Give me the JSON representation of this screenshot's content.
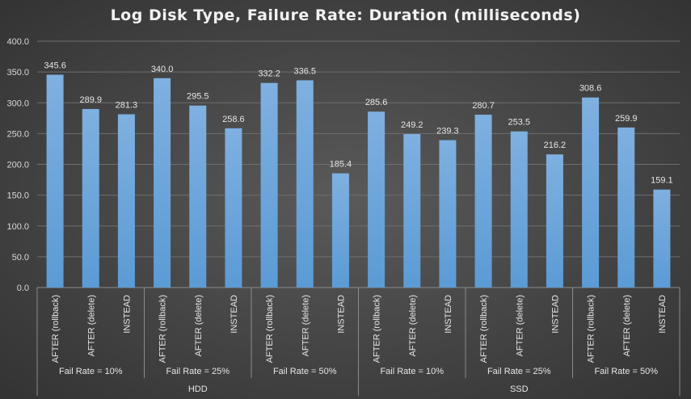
{
  "chart_data": {
    "type": "bar",
    "title": "Log Disk Type, Failure Rate: Duration (milliseconds)",
    "xlabel": "",
    "ylabel": "",
    "ylim": [
      0,
      400
    ],
    "y_ticks": [
      "0.0",
      "50.0",
      "100.0",
      "150.0",
      "200.0",
      "250.0",
      "300.0",
      "350.0",
      "400.0"
    ],
    "grid": true,
    "legend": "none",
    "bar_color": "#5b9bd5",
    "categories": [
      "AFTER (rollback)",
      "AFTER (delete)",
      "INSTEAD",
      "AFTER (rollback)",
      "AFTER (delete)",
      "INSTEAD",
      "AFTER (rollback)",
      "AFTER (delete)",
      "INSTEAD",
      "AFTER (rollback)",
      "AFTER (delete)",
      "INSTEAD",
      "AFTER (rollback)",
      "AFTER (delete)",
      "INSTEAD",
      "AFTER (rollback)",
      "AFTER (delete)",
      "INSTEAD"
    ],
    "values": [
      345.6,
      289.9,
      281.3,
      340.0,
      295.5,
      258.6,
      332.2,
      336.5,
      185.4,
      285.6,
      249.2,
      239.3,
      280.7,
      253.5,
      216.2,
      308.6,
      259.9,
      159.1
    ],
    "value_labels": [
      "345.6",
      "289.9",
      "281.3",
      "340.0",
      "295.5",
      "258.6",
      "332.2",
      "336.5",
      "185.4",
      "285.6",
      "249.2",
      "239.3",
      "280.7",
      "253.5",
      "216.2",
      "308.6",
      "259.9",
      "159.1"
    ],
    "fail_rate_groups": [
      "Fail Rate = 10%",
      "Fail Rate = 25%",
      "Fail Rate = 50%",
      "Fail Rate = 10%",
      "Fail Rate = 25%",
      "Fail Rate = 50%"
    ],
    "disk_groups": [
      "HDD",
      "SSD"
    ]
  }
}
